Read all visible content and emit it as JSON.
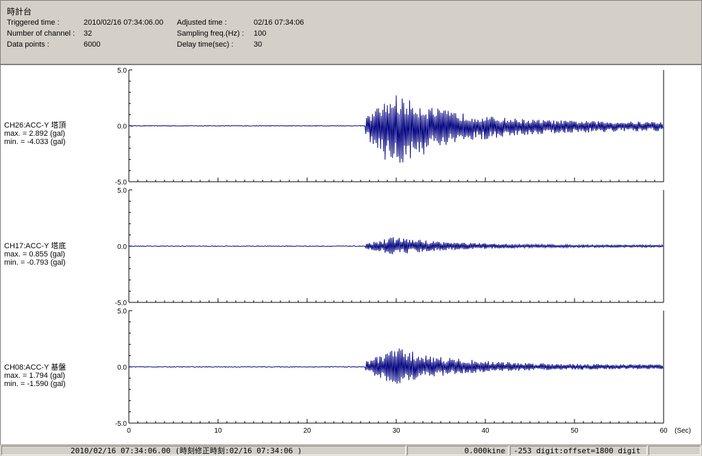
{
  "header": {
    "title": "時計台",
    "triggered_label": "Triggered time :",
    "triggered_value": "2010/02/16 07:34:06.00",
    "channels_label": "Number of channel :",
    "channels_value": "32",
    "points_label": "Data points :",
    "points_value": "6000",
    "adjusted_label": "Adjusted time :",
    "adjusted_value": "02/16 07:34:06",
    "sampling_label": "Sampling freq.(Hz) :",
    "sampling_value": "100",
    "delay_label": "Delay time(sec) :",
    "delay_value": "30"
  },
  "channels": [
    {
      "name": "CH26:ACC-Y 塔頂",
      "max": "max. = 2.892 (gal)",
      "min": "min. = -4.033 (gal)"
    },
    {
      "name": "CH17:ACC-Y 塔底",
      "max": "max. = 0.855 (gal)",
      "min": "min. = -0.793 (gal)"
    },
    {
      "name": "CH08:ACC-Y 基盤",
      "max": "max. = 1.794 (gal)",
      "min": "min. = -1.590 (gal)"
    }
  ],
  "chart_data": {
    "type": "line",
    "xlabel": "(Sec)",
    "xlim": [
      0,
      60
    ],
    "x_ticks": [
      "0",
      "10",
      "20",
      "30",
      "40",
      "50",
      "60"
    ],
    "y_tick_labels": [
      "5.0",
      "0.0",
      "-5.0"
    ],
    "ylim": [
      -5,
      5
    ],
    "line_color": "#00007f",
    "series": [
      {
        "name": "CH26:ACC-Y 塔頂",
        "max": 2.892,
        "min": -4.033,
        "onset_sec": 26.5
      },
      {
        "name": "CH17:ACC-Y 塔底",
        "max": 0.855,
        "min": -0.793,
        "onset_sec": 26.5
      },
      {
        "name": "CH08:ACC-Y 基盤",
        "max": 1.794,
        "min": -1.59,
        "onset_sec": 26.5
      }
    ]
  },
  "status": {
    "time_text": "2010/02/16 07:34:06.00  (時刻修正時刻:02/16 07:34:06  )",
    "velocity": "0.000kine",
    "digit": "-253 digit:offset=1800 digit"
  }
}
